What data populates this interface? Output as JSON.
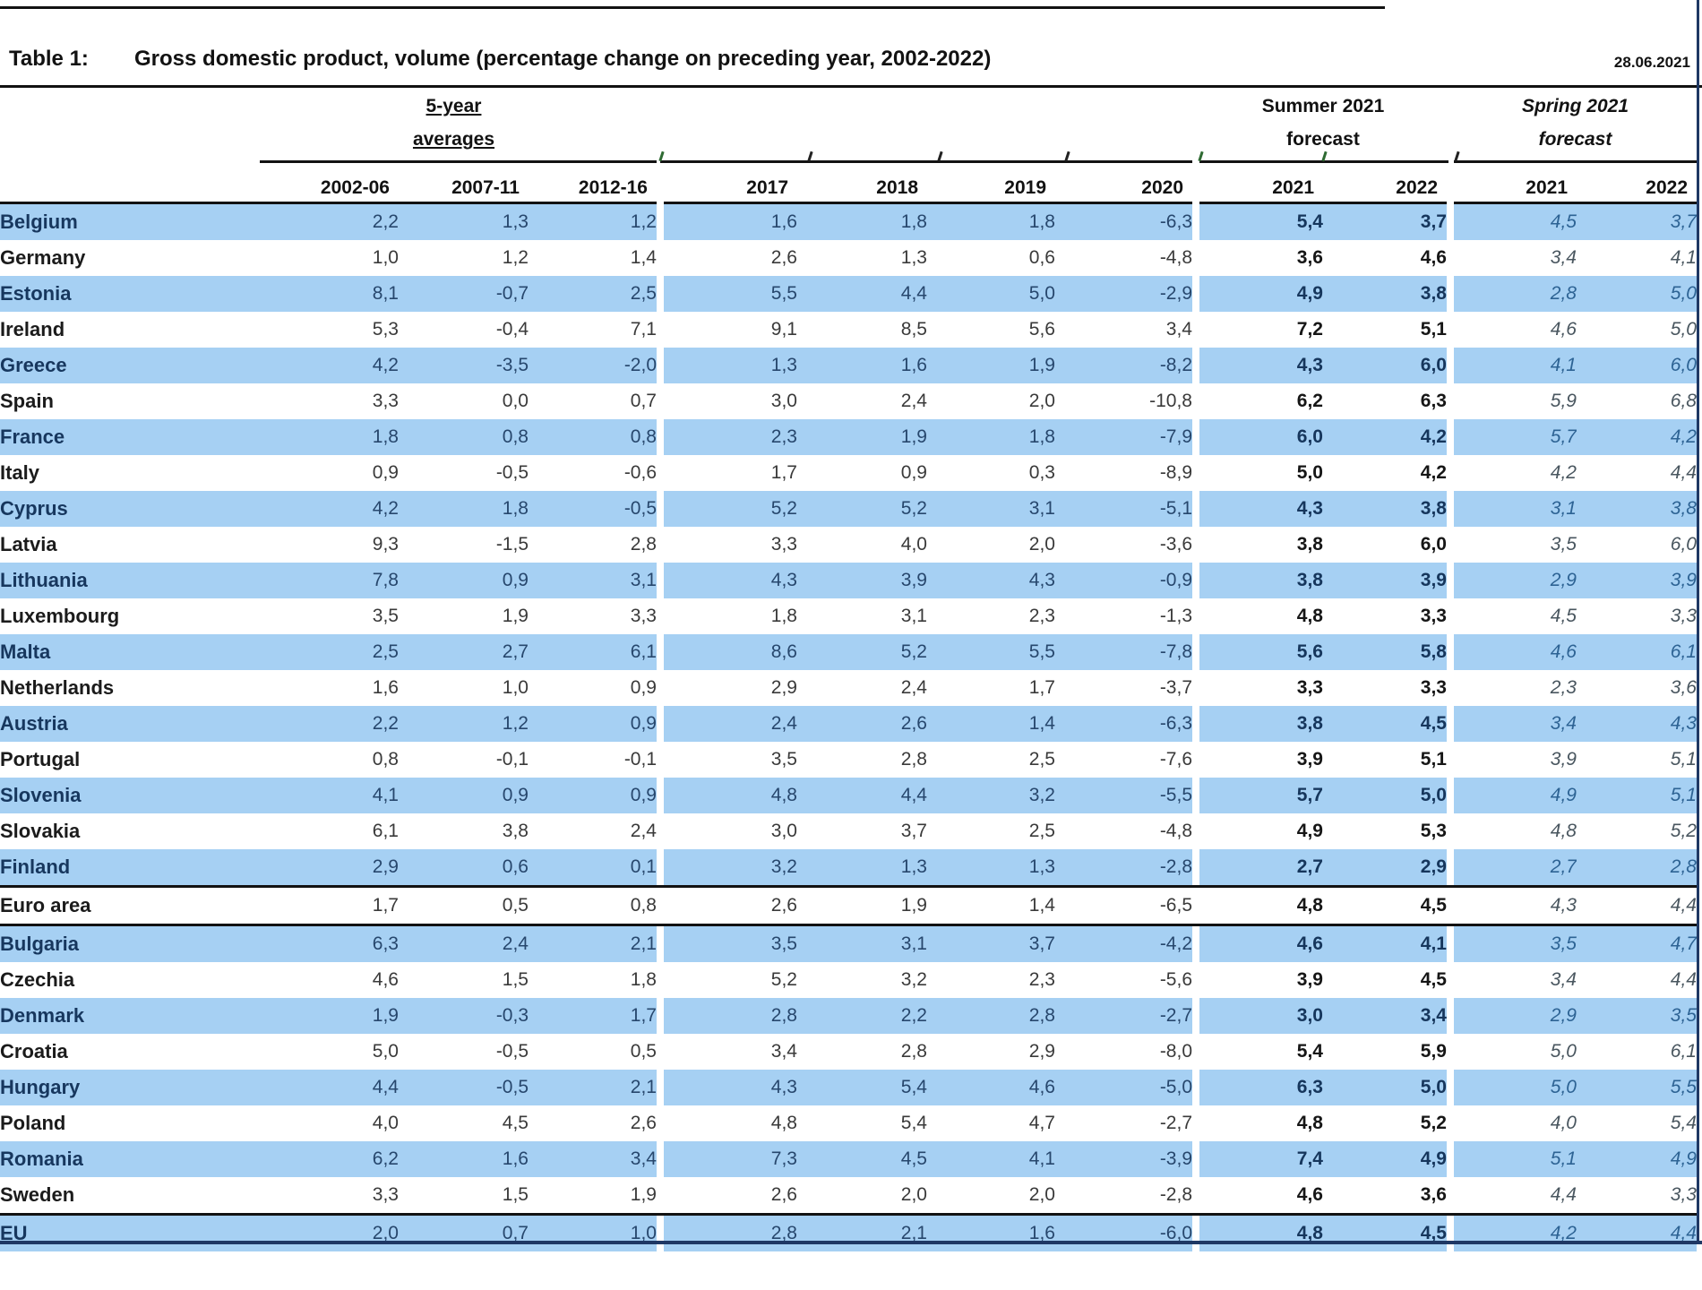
{
  "title_block": {
    "label": "Table 1:",
    "title": "Gross domestic product, volume (percentage change on preceding year, 2002-2022)",
    "date": "28.06.2021"
  },
  "header": {
    "averages": {
      "line1": "5-year",
      "line2": "averages"
    },
    "summer": {
      "line1": "Summer 2021",
      "line2": "forecast"
    },
    "spring": {
      "line1": "Spring 2021",
      "line2": "forecast"
    },
    "years": [
      "2002-06",
      "2007-11",
      "2012-16",
      "2017",
      "2018",
      "2019",
      "2020",
      "2021",
      "2022",
      "2021",
      "2022"
    ]
  },
  "rows": [
    {
      "label": "Belgium",
      "values": [
        "2,2",
        "1,3",
        "1,2",
        "1,6",
        "1,8",
        "1,8",
        "-6,3",
        "5,4",
        "3,7",
        "4,5",
        "3,7"
      ]
    },
    {
      "label": "Germany",
      "values": [
        "1,0",
        "1,2",
        "1,4",
        "2,6",
        "1,3",
        "0,6",
        "-4,8",
        "3,6",
        "4,6",
        "3,4",
        "4,1"
      ]
    },
    {
      "label": "Estonia",
      "values": [
        "8,1",
        "-0,7",
        "2,5",
        "5,5",
        "4,4",
        "5,0",
        "-2,9",
        "4,9",
        "3,8",
        "2,8",
        "5,0"
      ]
    },
    {
      "label": "Ireland",
      "values": [
        "5,3",
        "-0,4",
        "7,1",
        "9,1",
        "8,5",
        "5,6",
        "3,4",
        "7,2",
        "5,1",
        "4,6",
        "5,0"
      ]
    },
    {
      "label": "Greece",
      "values": [
        "4,2",
        "-3,5",
        "-2,0",
        "1,3",
        "1,6",
        "1,9",
        "-8,2",
        "4,3",
        "6,0",
        "4,1",
        "6,0"
      ]
    },
    {
      "label": "Spain",
      "values": [
        "3,3",
        "0,0",
        "0,7",
        "3,0",
        "2,4",
        "2,0",
        "-10,8",
        "6,2",
        "6,3",
        "5,9",
        "6,8"
      ]
    },
    {
      "label": "France",
      "values": [
        "1,8",
        "0,8",
        "0,8",
        "2,3",
        "1,9",
        "1,8",
        "-7,9",
        "6,0",
        "4,2",
        "5,7",
        "4,2"
      ]
    },
    {
      "label": "Italy",
      "values": [
        "0,9",
        "-0,5",
        "-0,6",
        "1,7",
        "0,9",
        "0,3",
        "-8,9",
        "5,0",
        "4,2",
        "4,2",
        "4,4"
      ]
    },
    {
      "label": "Cyprus",
      "values": [
        "4,2",
        "1,8",
        "-0,5",
        "5,2",
        "5,2",
        "3,1",
        "-5,1",
        "4,3",
        "3,8",
        "3,1",
        "3,8"
      ]
    },
    {
      "label": "Latvia",
      "values": [
        "9,3",
        "-1,5",
        "2,8",
        "3,3",
        "4,0",
        "2,0",
        "-3,6",
        "3,8",
        "6,0",
        "3,5",
        "6,0"
      ]
    },
    {
      "label": "Lithuania",
      "values": [
        "7,8",
        "0,9",
        "3,1",
        "4,3",
        "3,9",
        "4,3",
        "-0,9",
        "3,8",
        "3,9",
        "2,9",
        "3,9"
      ]
    },
    {
      "label": "Luxembourg",
      "values": [
        "3,5",
        "1,9",
        "3,3",
        "1,8",
        "3,1",
        "2,3",
        "-1,3",
        "4,8",
        "3,3",
        "4,5",
        "3,3"
      ]
    },
    {
      "label": "Malta",
      "values": [
        "2,5",
        "2,7",
        "6,1",
        "8,6",
        "5,2",
        "5,5",
        "-7,8",
        "5,6",
        "5,8",
        "4,6",
        "6,1"
      ]
    },
    {
      "label": "Netherlands",
      "values": [
        "1,6",
        "1,0",
        "0,9",
        "2,9",
        "2,4",
        "1,7",
        "-3,7",
        "3,3",
        "3,3",
        "2,3",
        "3,6"
      ]
    },
    {
      "label": "Austria",
      "values": [
        "2,2",
        "1,2",
        "0,9",
        "2,4",
        "2,6",
        "1,4",
        "-6,3",
        "3,8",
        "4,5",
        "3,4",
        "4,3"
      ]
    },
    {
      "label": "Portugal",
      "values": [
        "0,8",
        "-0,1",
        "-0,1",
        "3,5",
        "2,8",
        "2,5",
        "-7,6",
        "3,9",
        "5,1",
        "3,9",
        "5,1"
      ]
    },
    {
      "label": "Slovenia",
      "values": [
        "4,1",
        "0,9",
        "0,9",
        "4,8",
        "4,4",
        "3,2",
        "-5,5",
        "5,7",
        "5,0",
        "4,9",
        "5,1"
      ]
    },
    {
      "label": "Slovakia",
      "values": [
        "6,1",
        "3,8",
        "2,4",
        "3,0",
        "3,7",
        "2,5",
        "-4,8",
        "4,9",
        "5,3",
        "4,8",
        "5,2"
      ]
    },
    {
      "label": "Finland",
      "values": [
        "2,9",
        "0,6",
        "0,1",
        "3,2",
        "1,3",
        "1,3",
        "-2,8",
        "2,7",
        "2,9",
        "2,7",
        "2,8"
      ]
    },
    {
      "label": "Euro area",
      "values": [
        "1,7",
        "0,5",
        "0,8",
        "2,6",
        "1,9",
        "1,4",
        "-6,5",
        "4,8",
        "4,5",
        "4,3",
        "4,4"
      ],
      "sep": "both"
    },
    {
      "label": "Bulgaria",
      "values": [
        "6,3",
        "2,4",
        "2,1",
        "3,5",
        "3,1",
        "3,7",
        "-4,2",
        "4,6",
        "4,1",
        "3,5",
        "4,7"
      ]
    },
    {
      "label": "Czechia",
      "values": [
        "4,6",
        "1,5",
        "1,8",
        "5,2",
        "3,2",
        "2,3",
        "-5,6",
        "3,9",
        "4,5",
        "3,4",
        "4,4"
      ]
    },
    {
      "label": "Denmark",
      "values": [
        "1,9",
        "-0,3",
        "1,7",
        "2,8",
        "2,2",
        "2,8",
        "-2,7",
        "3,0",
        "3,4",
        "2,9",
        "3,5"
      ]
    },
    {
      "label": "Croatia",
      "values": [
        "5,0",
        "-0,5",
        "0,5",
        "3,4",
        "2,8",
        "2,9",
        "-8,0",
        "5,4",
        "5,9",
        "5,0",
        "6,1"
      ]
    },
    {
      "label": "Hungary",
      "values": [
        "4,4",
        "-0,5",
        "2,1",
        "4,3",
        "5,4",
        "4,6",
        "-5,0",
        "6,3",
        "5,0",
        "5,0",
        "5,5"
      ]
    },
    {
      "label": "Poland",
      "values": [
        "4,0",
        "4,5",
        "2,6",
        "4,8",
        "5,4",
        "4,7",
        "-2,7",
        "4,8",
        "5,2",
        "4,0",
        "5,4"
      ]
    },
    {
      "label": "Romania",
      "values": [
        "6,2",
        "1,6",
        "3,4",
        "7,3",
        "4,5",
        "4,1",
        "-3,9",
        "7,4",
        "4,9",
        "5,1",
        "4,9"
      ]
    },
    {
      "label": "Sweden",
      "values": [
        "3,3",
        "1,5",
        "1,9",
        "2,6",
        "2,0",
        "2,0",
        "-2,8",
        "4,6",
        "3,6",
        "4,4",
        "3,3"
      ]
    },
    {
      "label": "EU",
      "values": [
        "2,0",
        "0,7",
        "1,0",
        "2,8",
        "2,1",
        "1,6",
        "-6,0",
        "4,8",
        "4,5",
        "4,2",
        "4,4"
      ],
      "sep": "top"
    }
  ],
  "colors": {
    "row_blue": "#A6D0F3",
    "navy_text": "#17375E",
    "border_navy": "#1F3864",
    "line_black": "#121212",
    "tick_green": "#2F6B33"
  }
}
